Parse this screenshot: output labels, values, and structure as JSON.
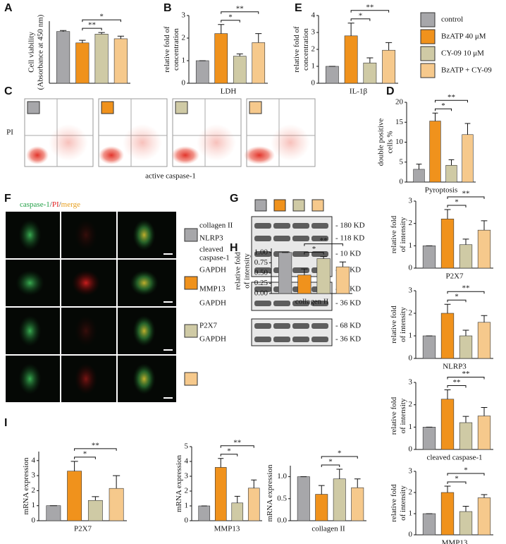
{
  "panel_labels": [
    "A",
    "B",
    "E",
    "C",
    "D",
    "F",
    "G",
    "H",
    "I"
  ],
  "legend": {
    "series": [
      {
        "name": "control",
        "color": "#a7a7aa"
      },
      {
        "name": "BzATP 40 μM",
        "color": "#f0921c"
      },
      {
        "name": "CY-09 10 μM",
        "color": "#cfcaa5"
      },
      {
        "name": "BzATP + CY-09",
        "color": "#f6c98c"
      }
    ]
  },
  "flow_cytometry": {
    "ylabel": "PI",
    "xlabel": "active caspase-1"
  },
  "immunofluorescence": {
    "header": [
      {
        "text": "caspase-1",
        "color": "#22a046"
      },
      {
        "text": "/",
        "color": "#444444"
      },
      {
        "text": "PI",
        "color": "#e02020"
      },
      {
        "text": "/",
        "color": "#444444"
      },
      {
        "text": "merge",
        "color": "#e8a020"
      }
    ]
  },
  "western_blot": {
    "rows": [
      {
        "label": [
          "collagen II"
        ],
        "size": "- 180 KD"
      },
      {
        "label": [
          "NLRP3"
        ],
        "size": "- 118 KD"
      },
      {
        "label": [
          "cleaved",
          "caspase-1"
        ],
        "size": "- 10 KD"
      },
      {
        "label": [
          "GAPDH"
        ],
        "size": "- 36 KD"
      },
      {
        "label": [
          "MMP13"
        ],
        "size": "- 70 KD"
      },
      {
        "label": [
          "GAPDH"
        ],
        "size": "- 36 KD"
      },
      {
        "label": [
          "P2X7"
        ],
        "size": "- 68 KD"
      },
      {
        "label": [
          "GAPDH"
        ],
        "size": "- 36 KD"
      }
    ]
  },
  "chart_data": [
    {
      "type": "bar",
      "ylabel": [
        "Cell viability",
        "(Absorbance at 450 nm)"
      ],
      "xlabel": null,
      "values": [
        1.0,
        0.78,
        0.95,
        0.86
      ],
      "errors": [
        0.02,
        0.05,
        0.03,
        0.05
      ],
      "ylim": [
        0,
        1.2
      ],
      "significance": [
        "**",
        "*"
      ]
    },
    {
      "type": "bar",
      "ylabel": [
        "relative fold of",
        "concentration"
      ],
      "xlabel": "LDH",
      "values": [
        1,
        2.2,
        1.2,
        1.8
      ],
      "errors": [
        0,
        0.4,
        0.1,
        0.4
      ],
      "ylim": [
        0,
        3
      ],
      "yticks": [
        0,
        1,
        2,
        3
      ],
      "significance": [
        "*",
        "**"
      ]
    },
    {
      "type": "bar",
      "ylabel": [
        "relative fold of",
        "concentration"
      ],
      "xlabel": "IL-1β",
      "values": [
        1,
        2.8,
        1.2,
        1.95
      ],
      "errors": [
        0,
        0.75,
        0.3,
        0.45
      ],
      "ylim": [
        0,
        4
      ],
      "yticks": [
        0,
        1,
        2,
        3,
        4
      ],
      "significance": [
        "*",
        "**"
      ]
    },
    {
      "type": "bar",
      "ylabel": [
        "double positive",
        "cells %"
      ],
      "xlabel": "Pyroptosis",
      "values": [
        3.2,
        15.3,
        4.2,
        11.9
      ],
      "errors": [
        1.3,
        2,
        1.4,
        2.8
      ],
      "ylim": [
        0,
        20
      ],
      "yticks": [
        0,
        5,
        10,
        15,
        20
      ],
      "significance": [
        "*",
        "**"
      ]
    },
    {
      "type": "bar",
      "ylabel": [
        "relative fold",
        "of intensity"
      ],
      "xlabel": "P2X7",
      "values": [
        1,
        2.2,
        1.05,
        1.7
      ],
      "errors": [
        0,
        0.42,
        0.25,
        0.42
      ],
      "ylim": [
        0,
        3
      ],
      "yticks": [
        0,
        1,
        2,
        3
      ],
      "significance": [
        "*",
        "**"
      ]
    },
    {
      "type": "bar",
      "ylabel": [
        "relative fold",
        "of intensity"
      ],
      "xlabel": "NLRP3",
      "values": [
        1,
        2.0,
        1.0,
        1.6
      ],
      "errors": [
        0,
        0.4,
        0.25,
        0.3
      ],
      "ylim": [
        0,
        3
      ],
      "yticks": [
        0,
        1,
        2,
        3
      ],
      "significance": [
        "*",
        "**"
      ]
    },
    {
      "type": "bar",
      "ylabel": [
        "relative fold",
        "of intensity"
      ],
      "xlabel": "collagen II",
      "values": [
        1,
        0.45,
        0.85,
        0.65
      ],
      "errors": [
        0,
        0.15,
        0.05,
        0.12
      ],
      "ylim": [
        0,
        1.1
      ],
      "yticks": [
        {
          "value": 0,
          "label": "0.00"
        },
        0.25,
        {
          "value": 0.5,
          "label": "0.50"
        },
        0.75,
        {
          "value": 1,
          "label": "1.00"
        }
      ],
      "significance": [
        "*",
        "**"
      ]
    },
    {
      "type": "bar",
      "ylabel": [
        "relative fold",
        "of intensity"
      ],
      "xlabel": "cleaved caspase-1",
      "values": [
        1,
        2.25,
        1.2,
        1.5
      ],
      "errors": [
        0,
        0.42,
        0.28,
        0.38
      ],
      "ylim": [
        0,
        3
      ],
      "yticks": [
        0,
        1,
        2,
        3
      ],
      "significance": [
        "**",
        "**"
      ]
    },
    {
      "type": "bar",
      "ylabel": [
        "mRNA expression"
      ],
      "xlabel": "P2X7",
      "values": [
        1,
        3.3,
        1.35,
        2.15
      ],
      "errors": [
        0,
        0.65,
        0.25,
        0.85
      ],
      "ylim": [
        0,
        4.6
      ],
      "yticks": [
        0,
        1,
        2,
        3,
        4
      ],
      "significance": [
        "*",
        "**"
      ]
    },
    {
      "type": "bar",
      "ylabel": [
        "mRNA expression"
      ],
      "xlabel": "MMP13",
      "values": [
        1,
        3.6,
        1.2,
        2.2
      ],
      "errors": [
        0,
        0.6,
        0.45,
        0.55
      ],
      "ylim": [
        0,
        5
      ],
      "yticks": [
        0,
        1,
        2,
        3,
        4,
        5
      ],
      "significance": [
        "*",
        "**"
      ]
    },
    {
      "type": "bar",
      "ylabel": [
        "mRNA expression"
      ],
      "xlabel": "collagen II",
      "values": [
        1,
        0.6,
        0.95,
        0.75
      ],
      "errors": [
        0,
        0.2,
        0.22,
        0.2
      ],
      "ylim": [
        0,
        1.25
      ],
      "yticks": [
        {
          "value": 0,
          "label": "0.0"
        },
        0.5,
        {
          "value": 1,
          "label": "1.0"
        }
      ],
      "significance": [
        "*",
        "*"
      ]
    },
    {
      "type": "bar",
      "ylabel": [
        "relative fold",
        "of intensity"
      ],
      "xlabel": "MMP13",
      "values": [
        1,
        2.0,
        1.1,
        1.75
      ],
      "errors": [
        0,
        0.3,
        0.25,
        0.15
      ],
      "ylim": [
        0,
        3
      ],
      "yticks": [
        0,
        1,
        2,
        3
      ],
      "significance": [
        "*",
        "*"
      ]
    }
  ]
}
